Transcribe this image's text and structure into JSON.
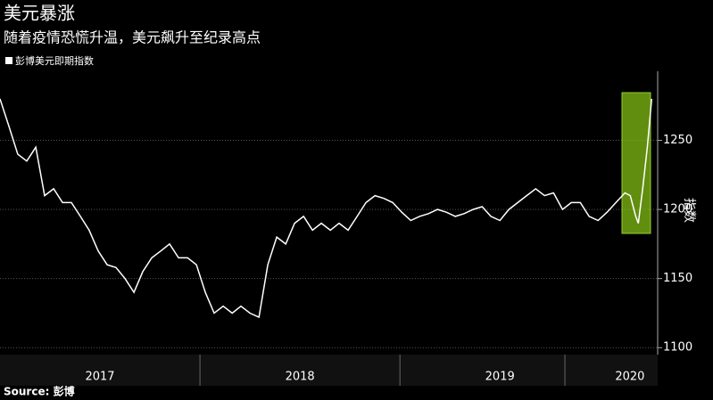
{
  "chart_data": {
    "type": "line",
    "title": "美元暴涨",
    "subtitle": "随着疫情恐慌升温，美元飙升至纪录高点",
    "source": "Source: 彭博",
    "y_label": "指数",
    "series": [
      {
        "name": "彭博美元即期指数",
        "color": "#ffffff",
        "x": [
          2017.0,
          2017.045,
          2017.089,
          2017.134,
          2017.179,
          2017.223,
          2017.268,
          2017.313,
          2017.357,
          2017.402,
          2017.446,
          2017.491,
          2017.536,
          2017.58,
          2017.625,
          2017.67,
          2017.714,
          2017.759,
          2017.804,
          2017.848,
          2017.893,
          2017.938,
          2017.982,
          2018.027,
          2018.071,
          2018.116,
          2018.161,
          2018.205,
          2018.25,
          2018.295,
          2018.339,
          2018.384,
          2018.429,
          2018.473,
          2018.518,
          2018.563,
          2018.607,
          2018.652,
          2018.696,
          2018.741,
          2018.786,
          2018.83,
          2018.875,
          2018.92,
          2018.964,
          2019.009,
          2019.054,
          2019.098,
          2019.143,
          2019.188,
          2019.232,
          2019.277,
          2019.321,
          2019.366,
          2019.411,
          2019.455,
          2019.5,
          2019.545,
          2019.589,
          2019.634,
          2019.679,
          2019.723,
          2019.768,
          2019.813,
          2019.857,
          2019.902,
          2019.946,
          2019.991,
          2020.036,
          2020.08,
          2020.125,
          2020.152,
          2020.179,
          2020.192,
          2020.214,
          2020.237,
          2020.259
        ],
        "values": [
          1280,
          1260,
          1240,
          1235,
          1245,
          1210,
          1215,
          1205,
          1205,
          1195,
          1185,
          1170,
          1160,
          1158,
          1150,
          1140,
          1155,
          1165,
          1170,
          1175,
          1165,
          1165,
          1160,
          1140,
          1125,
          1130,
          1125,
          1130,
          1125,
          1122,
          1160,
          1180,
          1175,
          1190,
          1195,
          1185,
          1190,
          1185,
          1190,
          1185,
          1195,
          1205,
          1210,
          1208,
          1205,
          1198,
          1192,
          1195,
          1197,
          1200,
          1198,
          1195,
          1197,
          1200,
          1202,
          1195,
          1192,
          1200,
          1205,
          1210,
          1215,
          1210,
          1212,
          1200,
          1205,
          1205,
          1195,
          1192,
          1198,
          1205,
          1212,
          1210,
          1195,
          1190,
          1215,
          1245,
          1280
        ]
      }
    ],
    "xlim": [
      2017,
      2020.28
    ],
    "xticks": [
      {
        "value": 2017.5,
        "label": "2017"
      },
      {
        "value": 2018.5,
        "label": "2018"
      },
      {
        "value": 2019.5,
        "label": "2019"
      },
      {
        "value": 2020.15,
        "label": "2020"
      }
    ],
    "ylim": [
      1095,
      1300
    ],
    "yticks": [
      1100,
      1150,
      1200,
      1250
    ],
    "grid": true
  }
}
